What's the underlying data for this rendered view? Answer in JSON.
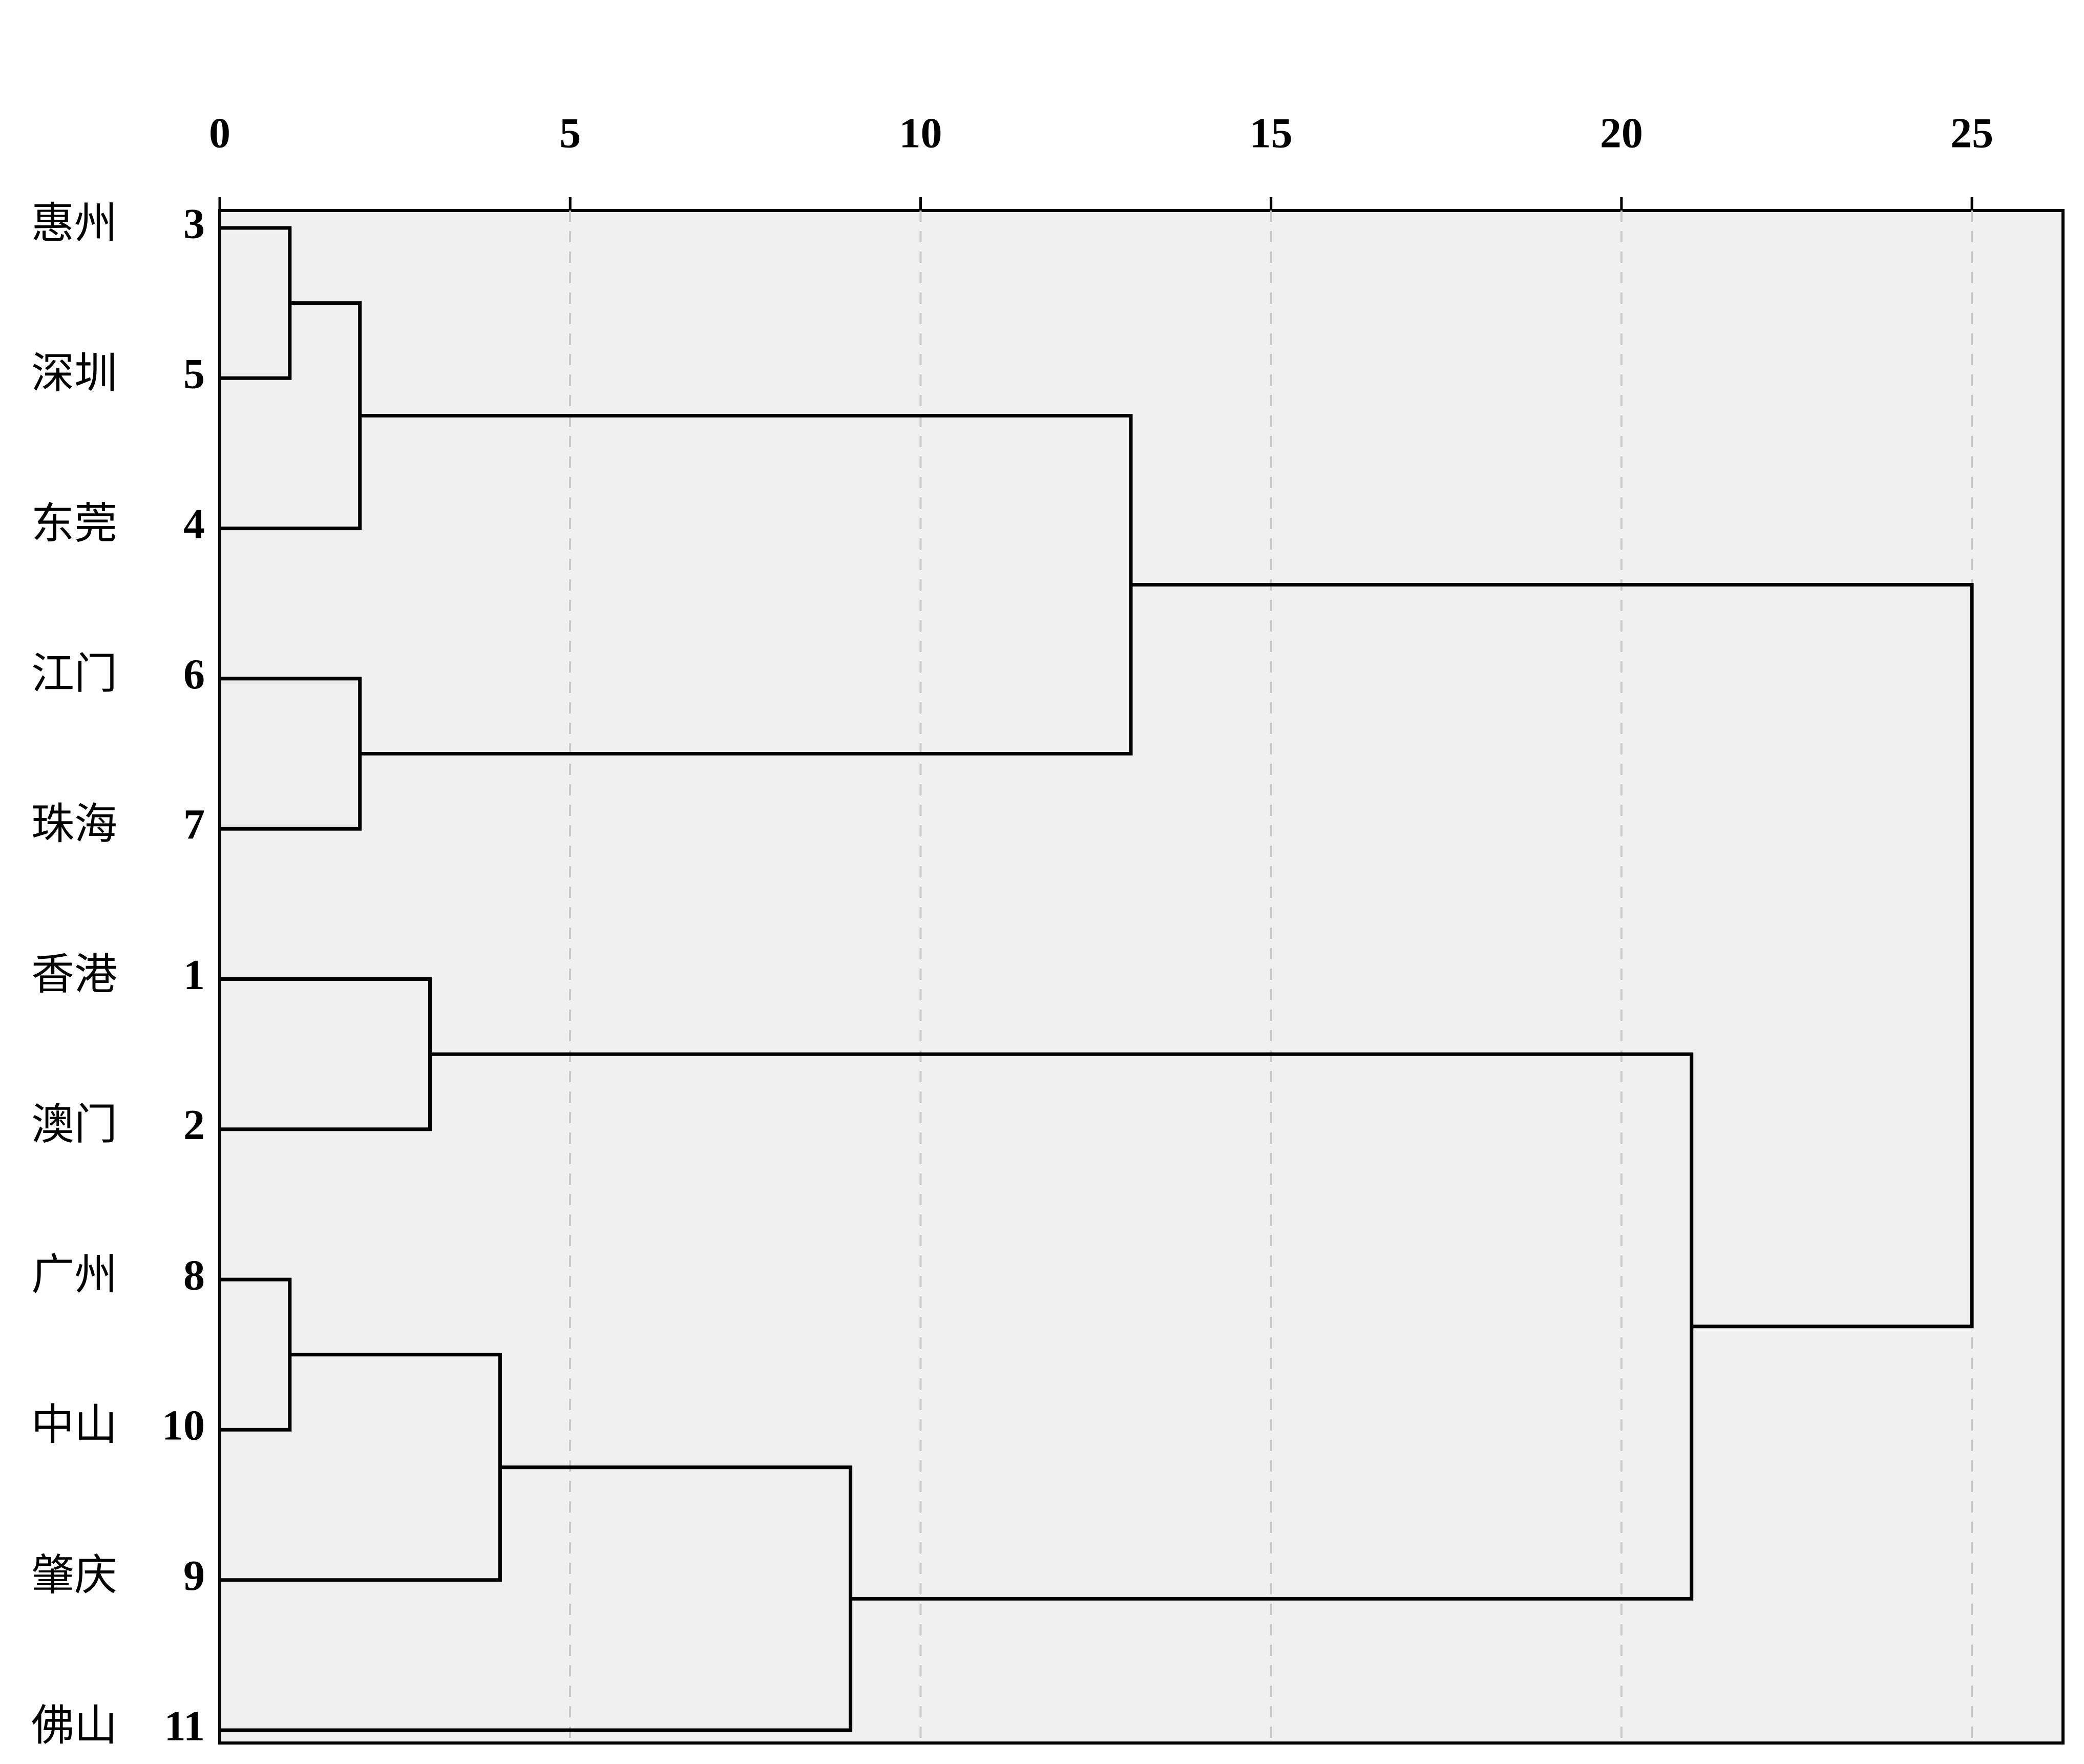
{
  "chart_data": {
    "type": "dendrogram",
    "orientation": "horizontal",
    "leaves": [
      {
        "name": "惠州",
        "id": 3
      },
      {
        "name": "深圳",
        "id": 5
      },
      {
        "name": "东莞",
        "id": 4
      },
      {
        "name": "江门",
        "id": 6
      },
      {
        "name": "珠海",
        "id": 7
      },
      {
        "name": "香港",
        "id": 1
      },
      {
        "name": "澳门",
        "id": 2
      },
      {
        "name": "广州",
        "id": 8
      },
      {
        "name": "中山",
        "id": 10
      },
      {
        "name": "肇庆",
        "id": 9
      },
      {
        "name": "佛山",
        "id": 11
      }
    ],
    "merges": [
      {
        "left": 0,
        "right": 1,
        "height": 1
      },
      {
        "left": 11,
        "right": 2,
        "height": 2
      },
      {
        "left": 3,
        "right": 4,
        "height": 2
      },
      {
        "left": 12,
        "right": 13,
        "height": 13
      },
      {
        "left": 5,
        "right": 6,
        "height": 3
      },
      {
        "left": 7,
        "right": 8,
        "height": 1
      },
      {
        "left": 16,
        "right": 9,
        "height": 4
      },
      {
        "left": 17,
        "right": 10,
        "height": 9
      },
      {
        "left": 15,
        "right": 18,
        "height": 21
      },
      {
        "left": 14,
        "right": 19,
        "height": 25
      }
    ],
    "xlim": [
      0,
      26.3
    ],
    "xticks": [
      0,
      5,
      10,
      15,
      20,
      25
    ],
    "grid": true,
    "color": "#000000"
  }
}
